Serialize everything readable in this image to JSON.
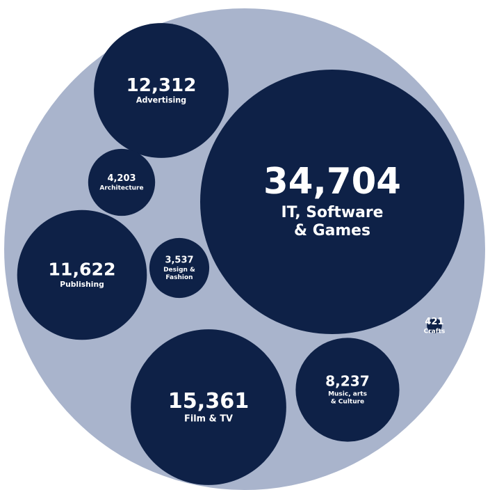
{
  "chart_data": {
    "type": "bubble",
    "categories": [
      [
        "IT, Software",
        "& Games"
      ],
      [
        "Advertising"
      ],
      [
        "Architecture"
      ],
      [
        "Publishing"
      ],
      [
        "Design &",
        "Fashion"
      ],
      [
        "Film & TV"
      ],
      [
        "Music, arts",
        "& Culture"
      ],
      [
        "Crafts"
      ]
    ],
    "values": [
      34704,
      12312,
      4203,
      11622,
      3537,
      15361,
      8237,
      421
    ],
    "value_labels": [
      "34,704",
      "12,312",
      "4,203",
      "11,622",
      "3,537",
      "15,361",
      "8,237",
      "421"
    ],
    "color": "#0e2147",
    "background_color": "#a9b4cc"
  }
}
